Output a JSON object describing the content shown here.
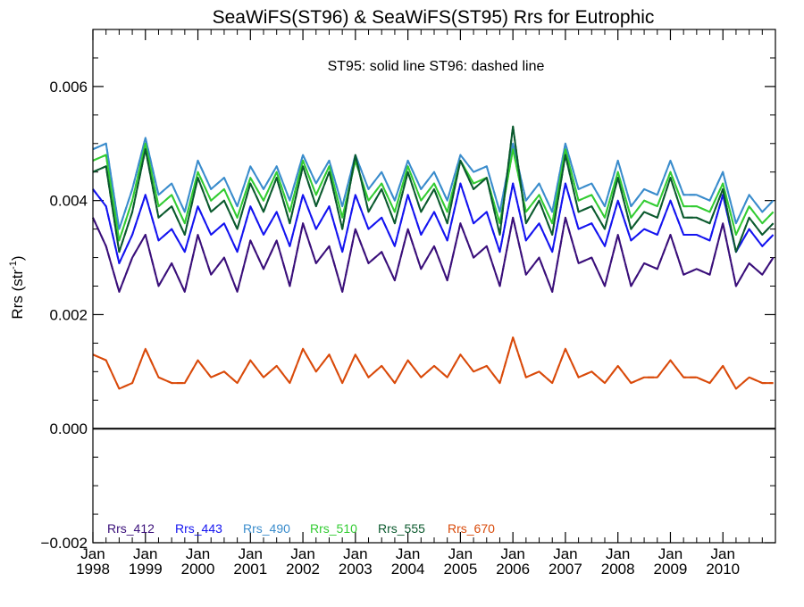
{
  "chart_data": {
    "type": "line",
    "title": "SeaWiFS(ST96) & SeaWiFS(ST95)  Rrs for Eutrophic",
    "annotation": "ST95: solid line   ST96: dashed line",
    "xlabel": "",
    "ylabel": "Rrs (str",
    "ylabel_superscript": "-1",
    "ylabel_suffix": ")",
    "xlim": [
      1998.0,
      2011.0
    ],
    "ylim": [
      -0.002,
      0.007
    ],
    "y_ticks": [
      -0.002,
      0.0,
      0.002,
      0.004,
      0.006
    ],
    "y_tick_labels": [
      "−0.002",
      "0.000",
      "0.002",
      "0.004",
      "0.006"
    ],
    "x_ticks": [
      1998,
      1999,
      2000,
      2001,
      2002,
      2003,
      2004,
      2005,
      2006,
      2007,
      2008,
      2009,
      2010
    ],
    "x_tick_month": "Jan",
    "x_tick_years": [
      "1998",
      "1999",
      "2000",
      "2001",
      "2002",
      "2003",
      "2004",
      "2005",
      "2006",
      "2007",
      "2008",
      "2009",
      "2010"
    ],
    "grid": false,
    "zero_line": 0.0,
    "legend_position": "bottom-left",
    "series": [
      {
        "name": "Rrs_412",
        "color": "#3a0f7a",
        "x": [
          1998.0,
          1998.25,
          1998.5,
          1998.75,
          1999.0,
          1999.25,
          1999.5,
          1999.75,
          2000.0,
          2000.25,
          2000.5,
          2000.75,
          2001.0,
          2001.25,
          2001.5,
          2001.75,
          2002.0,
          2002.25,
          2002.5,
          2002.75,
          2003.0,
          2003.25,
          2003.5,
          2003.75,
          2004.0,
          2004.25,
          2004.5,
          2004.75,
          2005.0,
          2005.25,
          2005.5,
          2005.75,
          2006.0,
          2006.25,
          2006.5,
          2006.75,
          2007.0,
          2007.25,
          2007.5,
          2007.75,
          2008.0,
          2008.25,
          2008.5,
          2008.75,
          2009.0,
          2009.25,
          2009.5,
          2009.75,
          2010.0,
          2010.25,
          2010.5,
          2010.75,
          2010.96
        ],
        "values": [
          0.0037,
          0.0032,
          0.0024,
          0.003,
          0.0034,
          0.0025,
          0.0029,
          0.0024,
          0.0034,
          0.0027,
          0.003,
          0.0024,
          0.0033,
          0.0028,
          0.0033,
          0.0025,
          0.0036,
          0.0029,
          0.0032,
          0.0024,
          0.0035,
          0.0029,
          0.0031,
          0.0026,
          0.0035,
          0.0028,
          0.0032,
          0.0026,
          0.0036,
          0.003,
          0.0032,
          0.0025,
          0.0037,
          0.0027,
          0.003,
          0.0024,
          0.0037,
          0.0029,
          0.003,
          0.0025,
          0.0034,
          0.0025,
          0.0029,
          0.0028,
          0.0034,
          0.0027,
          0.0028,
          0.0027,
          0.0036,
          0.0025,
          0.0029,
          0.0027,
          0.003
        ]
      },
      {
        "name": "Rrs_443",
        "color": "#1414f0",
        "x": [
          1998.0,
          1998.25,
          1998.5,
          1998.75,
          1999.0,
          1999.25,
          1999.5,
          1999.75,
          2000.0,
          2000.25,
          2000.5,
          2000.75,
          2001.0,
          2001.25,
          2001.5,
          2001.75,
          2002.0,
          2002.25,
          2002.5,
          2002.75,
          2003.0,
          2003.25,
          2003.5,
          2003.75,
          2004.0,
          2004.25,
          2004.5,
          2004.75,
          2005.0,
          2005.25,
          2005.5,
          2005.75,
          2006.0,
          2006.25,
          2006.5,
          2006.75,
          2007.0,
          2007.25,
          2007.5,
          2007.75,
          2008.0,
          2008.25,
          2008.5,
          2008.75,
          2009.0,
          2009.25,
          2009.5,
          2009.75,
          2010.0,
          2010.25,
          2010.5,
          2010.75,
          2010.96
        ],
        "values": [
          0.0042,
          0.0039,
          0.0029,
          0.0034,
          0.0041,
          0.0033,
          0.0035,
          0.0031,
          0.0039,
          0.0034,
          0.0036,
          0.0031,
          0.0039,
          0.0034,
          0.0038,
          0.0032,
          0.0041,
          0.0035,
          0.0039,
          0.0031,
          0.0041,
          0.0035,
          0.0037,
          0.0032,
          0.0041,
          0.0034,
          0.0038,
          0.0033,
          0.0043,
          0.0036,
          0.0038,
          0.0031,
          0.0043,
          0.0033,
          0.0036,
          0.0031,
          0.0043,
          0.0035,
          0.0036,
          0.0032,
          0.004,
          0.0033,
          0.0035,
          0.0034,
          0.004,
          0.0034,
          0.0034,
          0.0033,
          0.0041,
          0.0031,
          0.0035,
          0.0032,
          0.0034
        ]
      },
      {
        "name": "Rrs_490",
        "color": "#3a8ccc",
        "x": [
          1998.0,
          1998.25,
          1998.5,
          1998.75,
          1999.0,
          1999.25,
          1999.5,
          1999.75,
          2000.0,
          2000.25,
          2000.5,
          2000.75,
          2001.0,
          2001.25,
          2001.5,
          2001.75,
          2002.0,
          2002.25,
          2002.5,
          2002.75,
          2003.0,
          2003.25,
          2003.5,
          2003.75,
          2004.0,
          2004.25,
          2004.5,
          2004.75,
          2005.0,
          2005.25,
          2005.5,
          2005.75,
          2006.0,
          2006.25,
          2006.5,
          2006.75,
          2007.0,
          2007.25,
          2007.5,
          2007.75,
          2008.0,
          2008.25,
          2008.5,
          2008.75,
          2009.0,
          2009.25,
          2009.5,
          2009.75,
          2010.0,
          2010.25,
          2010.5,
          2010.75,
          2010.96
        ],
        "values": [
          0.0049,
          0.005,
          0.0035,
          0.0042,
          0.0051,
          0.0041,
          0.0043,
          0.0038,
          0.0047,
          0.0042,
          0.0044,
          0.0039,
          0.0046,
          0.0042,
          0.0046,
          0.004,
          0.0048,
          0.0043,
          0.0047,
          0.0039,
          0.0048,
          0.0042,
          0.0045,
          0.004,
          0.0047,
          0.0042,
          0.0045,
          0.004,
          0.0048,
          0.0045,
          0.0046,
          0.0038,
          0.005,
          0.004,
          0.0043,
          0.0038,
          0.005,
          0.0042,
          0.0043,
          0.0039,
          0.0047,
          0.0039,
          0.0042,
          0.0041,
          0.0047,
          0.0041,
          0.0041,
          0.004,
          0.0045,
          0.0036,
          0.0041,
          0.0038,
          0.004
        ]
      },
      {
        "name": "Rrs_510",
        "color": "#33cc33",
        "x": [
          1998.0,
          1998.25,
          1998.5,
          1998.75,
          1999.0,
          1999.25,
          1999.5,
          1999.75,
          2000.0,
          2000.25,
          2000.5,
          2000.75,
          2001.0,
          2001.25,
          2001.5,
          2001.75,
          2002.0,
          2002.25,
          2002.5,
          2002.75,
          2003.0,
          2003.25,
          2003.5,
          2003.75,
          2004.0,
          2004.25,
          2004.5,
          2004.75,
          2005.0,
          2005.25,
          2005.5,
          2005.75,
          2006.0,
          2006.25,
          2006.5,
          2006.75,
          2007.0,
          2007.25,
          2007.5,
          2007.75,
          2008.0,
          2008.25,
          2008.5,
          2008.75,
          2009.0,
          2009.25,
          2009.5,
          2009.75,
          2010.0,
          2010.25,
          2010.5,
          2010.75,
          2010.96
        ],
        "values": [
          0.0047,
          0.0048,
          0.0033,
          0.004,
          0.005,
          0.0039,
          0.0041,
          0.0036,
          0.0045,
          0.004,
          0.0042,
          0.0037,
          0.0044,
          0.004,
          0.0045,
          0.0038,
          0.0047,
          0.0041,
          0.0046,
          0.0037,
          0.0047,
          0.004,
          0.0043,
          0.0038,
          0.0046,
          0.004,
          0.0043,
          0.0038,
          0.0047,
          0.0043,
          0.0044,
          0.0036,
          0.0049,
          0.0038,
          0.0041,
          0.0036,
          0.0049,
          0.004,
          0.0041,
          0.0037,
          0.0045,
          0.0037,
          0.004,
          0.0039,
          0.0045,
          0.0039,
          0.0039,
          0.0038,
          0.0043,
          0.0034,
          0.0039,
          0.0036,
          0.0038
        ]
      },
      {
        "name": "Rrs_555",
        "color": "#0b5a2e",
        "x": [
          1998.0,
          1998.25,
          1998.5,
          1998.75,
          1999.0,
          1999.25,
          1999.5,
          1999.75,
          2000.0,
          2000.25,
          2000.5,
          2000.75,
          2001.0,
          2001.25,
          2001.5,
          2001.75,
          2002.0,
          2002.25,
          2002.5,
          2002.75,
          2003.0,
          2003.25,
          2003.5,
          2003.75,
          2004.0,
          2004.25,
          2004.5,
          2004.75,
          2005.0,
          2005.25,
          2005.5,
          2005.75,
          2006.0,
          2006.25,
          2006.5,
          2006.75,
          2007.0,
          2007.25,
          2007.5,
          2007.75,
          2008.0,
          2008.25,
          2008.5,
          2008.75,
          2009.0,
          2009.25,
          2009.5,
          2009.75,
          2010.0,
          2010.25,
          2010.5,
          2010.75,
          2010.96
        ],
        "values": [
          0.0045,
          0.0046,
          0.0031,
          0.0038,
          0.0049,
          0.0037,
          0.0039,
          0.0034,
          0.0044,
          0.0038,
          0.004,
          0.0035,
          0.0043,
          0.0038,
          0.0044,
          0.0036,
          0.0046,
          0.0039,
          0.0045,
          0.0035,
          0.0048,
          0.0038,
          0.0042,
          0.0036,
          0.0045,
          0.0038,
          0.0042,
          0.0036,
          0.0047,
          0.0042,
          0.0044,
          0.0034,
          0.0053,
          0.0036,
          0.004,
          0.0034,
          0.0048,
          0.0038,
          0.0039,
          0.0035,
          0.0044,
          0.0035,
          0.0038,
          0.0037,
          0.0044,
          0.0037,
          0.0037,
          0.0036,
          0.0042,
          0.0031,
          0.0037,
          0.0034,
          0.0036
        ]
      },
      {
        "name": "Rrs_670",
        "color": "#d94a0a",
        "x": [
          1998.0,
          1998.25,
          1998.5,
          1998.75,
          1999.0,
          1999.25,
          1999.5,
          1999.75,
          2000.0,
          2000.25,
          2000.5,
          2000.75,
          2001.0,
          2001.25,
          2001.5,
          2001.75,
          2002.0,
          2002.25,
          2002.5,
          2002.75,
          2003.0,
          2003.25,
          2003.5,
          2003.75,
          2004.0,
          2004.25,
          2004.5,
          2004.75,
          2005.0,
          2005.25,
          2005.5,
          2005.75,
          2006.0,
          2006.25,
          2006.5,
          2006.75,
          2007.0,
          2007.25,
          2007.5,
          2007.75,
          2008.0,
          2008.25,
          2008.5,
          2008.75,
          2009.0,
          2009.25,
          2009.5,
          2009.75,
          2010.0,
          2010.25,
          2010.5,
          2010.75,
          2010.96
        ],
        "values": [
          0.0013,
          0.0012,
          0.0007,
          0.0008,
          0.0014,
          0.0009,
          0.0008,
          0.0008,
          0.0012,
          0.0009,
          0.001,
          0.0008,
          0.0012,
          0.0009,
          0.0011,
          0.0008,
          0.0014,
          0.001,
          0.0013,
          0.0008,
          0.0013,
          0.0009,
          0.0011,
          0.0008,
          0.0012,
          0.0009,
          0.0011,
          0.0009,
          0.0013,
          0.001,
          0.0011,
          0.0008,
          0.0016,
          0.0009,
          0.001,
          0.0008,
          0.0014,
          0.0009,
          0.001,
          0.0008,
          0.0011,
          0.0008,
          0.0009,
          0.0009,
          0.0012,
          0.0009,
          0.0009,
          0.0008,
          0.0011,
          0.0007,
          0.0009,
          0.0008,
          0.0008
        ]
      }
    ]
  }
}
